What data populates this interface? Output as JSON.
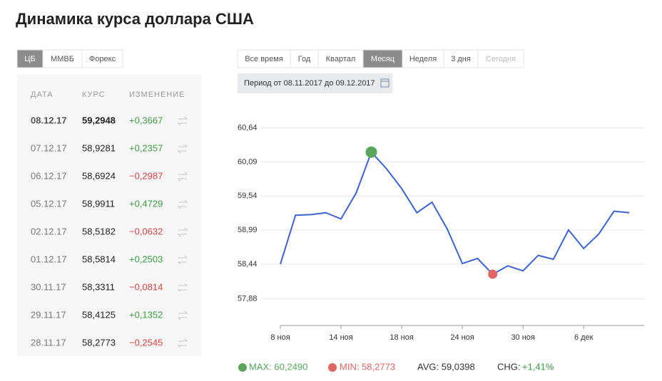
{
  "header": {
    "title": "Динамика курса доллара США"
  },
  "source_tabs": {
    "items": [
      "ЦБ",
      "ММВБ",
      "Форекс"
    ],
    "active": 0
  },
  "table": {
    "columns": [
      "ДАТА",
      "КУРС",
      "ИЗМЕНЕНИЕ"
    ],
    "rows": [
      [
        "08.12.17",
        "59,2948",
        "+0,3667"
      ],
      [
        "07.12.17",
        "58,9281",
        "+0,2357"
      ],
      [
        "06.12.17",
        "58,6924",
        "−0,2987"
      ],
      [
        "05.12.17",
        "58,9911",
        "+0,4729"
      ],
      [
        "02.12.17",
        "58,5182",
        "−0,0632"
      ],
      [
        "01.12.17",
        "58,5814",
        "+0,2503"
      ],
      [
        "30.11.17",
        "58,3311",
        "−0,0814"
      ],
      [
        "29.11.17",
        "58,4125",
        "+0,1352"
      ],
      [
        "28.11.17",
        "58,2773",
        "−0,2545"
      ]
    ]
  },
  "period_tabs": {
    "items": [
      "Все время",
      "Год",
      "Квартал",
      "Месяц",
      "Неделя",
      "3 дня",
      "Сегодня"
    ],
    "active": 3,
    "disabled": [
      6
    ]
  },
  "period": "Период от 08.11.2017 до 09.12.2017",
  "chart_data": {
    "type": "line",
    "categories": [
      "8 ноя",
      null,
      null,
      null,
      "14 ноя",
      null,
      null,
      null,
      "18 ноя",
      null,
      null,
      null,
      "24 ноя",
      null,
      null,
      null,
      "30 ноя",
      null,
      null,
      null,
      "6 дек",
      null,
      null,
      null
    ],
    "series": [
      {
        "color": "#3d63cc",
        "values": [
          58.44,
          59.23,
          59.24,
          59.27,
          59.17,
          59.59,
          60.249,
          59.98,
          59.66,
          59.27,
          59.44,
          59.01,
          58.45,
          58.5318,
          58.2773,
          58.4125,
          58.3311,
          58.5814,
          58.5182,
          58.9911,
          58.6924,
          58.9281,
          59.2948,
          59.27
        ]
      }
    ],
    "ylim": [
      57.45,
      60.75
    ],
    "yticks": [
      {
        "value": 57.88,
        "label": "57,88"
      },
      {
        "value": 58.44,
        "label": "58,44"
      },
      {
        "value": 58.99,
        "label": "58,99"
      },
      {
        "value": 59.54,
        "label": "59,54"
      },
      {
        "value": 60.09,
        "label": "60,09"
      },
      {
        "value": 60.64,
        "label": "60,64"
      }
    ],
    "grid": true,
    "max_index": 6,
    "min_index": 14,
    "max_color": "#5aa65e",
    "min_color": "#e06565"
  },
  "stats": {
    "max": "MAX: 60,2490",
    "min": "MIN: 58,2773",
    "avg": "AVG: 59,0398",
    "chg_label": "CHG:",
    "chg": "+1,41%"
  }
}
